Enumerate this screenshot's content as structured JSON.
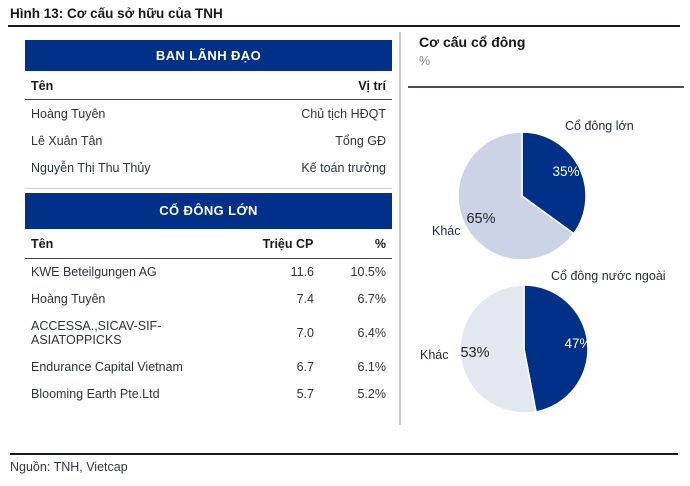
{
  "figure": {
    "title": "Hình 13: Cơ cấu sở hữu của TNH",
    "source": "Nguồn: TNH, Vietcap"
  },
  "colors": {
    "primary_blue": "#003087",
    "pie1_light": "#ccd3e6",
    "pie2_light": "#e3e7f0",
    "rule_dark": "#15181c",
    "divider_gray": "#c9ccd2"
  },
  "board": {
    "header": "BAN LÃNH ĐẠO",
    "columns": {
      "name": "Tên",
      "position": "Vị trí"
    },
    "rows": [
      {
        "name": "Hoàng Tuyên",
        "position": "Chủ tịch HĐQT"
      },
      {
        "name": "Lê Xuân Tân",
        "position": "Tổng GĐ"
      },
      {
        "name": "Nguyễn Thị Thu Thủy",
        "position": "Kế toán trưởng"
      }
    ]
  },
  "shareholders": {
    "header": "CỔ ĐÔNG LỚN",
    "columns": {
      "name": "Tên",
      "shares": "Triệu CP",
      "percent": "%"
    },
    "rows": [
      {
        "name": "KWE Beteilgungen AG",
        "shares": "11.6",
        "percent": "10.5%"
      },
      {
        "name": "Hoàng Tuyên",
        "shares": "7.4",
        "percent": "6.7%"
      },
      {
        "name": "ACCESSA.,SICAV-SIF- ASIATOPPICKS",
        "shares": "7.0",
        "percent": "6.4%"
      },
      {
        "name": "Endurance Capital Vietnam",
        "shares": "6.7",
        "percent": "6.1%"
      },
      {
        "name": "Blooming Earth Pte.Ltd",
        "shares": "5.7",
        "percent": "5.2%"
      }
    ]
  },
  "chart_section": {
    "title": "Cơ cấu cổ đông",
    "unit": "%"
  },
  "chart_data": [
    {
      "type": "pie",
      "title": "Cơ cấu cổ đông (%) — cổ đông lớn",
      "start_angle_deg": 0,
      "direction": "clockwise",
      "slices": [
        {
          "label": "Cổ đông lớn",
          "value": 35,
          "value_label": "35%",
          "color": "#003087"
        },
        {
          "label": "Khác",
          "value": 65,
          "value_label": "65%",
          "color": "#ccd3e6"
        }
      ]
    },
    {
      "type": "pie",
      "title": "Cơ cấu cổ đông (%) — cổ đông nước ngoài",
      "start_angle_deg": 0,
      "direction": "clockwise",
      "slices": [
        {
          "label": "Cổ đông nước ngoài",
          "value": 47,
          "value_label": "47%",
          "color": "#003087"
        },
        {
          "label": "Khác",
          "value": 53,
          "value_label": "53%",
          "color": "#e3e7f0"
        }
      ]
    }
  ]
}
